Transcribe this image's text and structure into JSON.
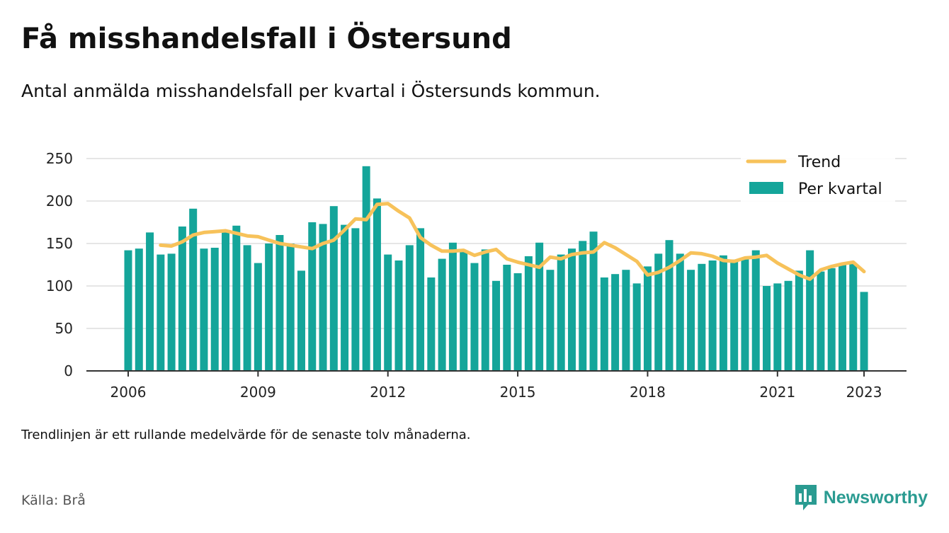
{
  "header": {
    "title": "Få misshandelsfall i Östersund",
    "subtitle": "Antal anmälda misshandelsfall per kvartal i Östersunds kommun."
  },
  "footer": {
    "note": "Trendlinjen är ett rullande medelvärde för de senaste tolv månaderna.",
    "source": "Källa: Brå",
    "brand": "Newsworthy"
  },
  "colors": {
    "bar": "#14a59a",
    "trend": "#f7c25a",
    "grid": "#dddddd",
    "brand": "#2a9b91"
  },
  "chart_data": {
    "type": "bar",
    "title": "",
    "xlabel": "",
    "ylabel": "",
    "ylim": [
      0,
      250
    ],
    "yticks": [
      0,
      50,
      100,
      150,
      200,
      250
    ],
    "xticks": [
      "2006",
      "2009",
      "2012",
      "2015",
      "2018",
      "2021",
      "2023"
    ],
    "grid": true,
    "legend_position": "top-right",
    "x": [
      "2006 Q1",
      "2006 Q2",
      "2006 Q3",
      "2006 Q4",
      "2007 Q1",
      "2007 Q2",
      "2007 Q3",
      "2007 Q4",
      "2008 Q1",
      "2008 Q2",
      "2008 Q3",
      "2008 Q4",
      "2009 Q1",
      "2009 Q2",
      "2009 Q3",
      "2009 Q4",
      "2010 Q1",
      "2010 Q2",
      "2010 Q3",
      "2010 Q4",
      "2011 Q1",
      "2011 Q2",
      "2011 Q3",
      "2011 Q4",
      "2012 Q1",
      "2012 Q2",
      "2012 Q3",
      "2012 Q4",
      "2013 Q1",
      "2013 Q2",
      "2013 Q3",
      "2013 Q4",
      "2014 Q1",
      "2014 Q2",
      "2014 Q3",
      "2014 Q4",
      "2015 Q1",
      "2015 Q2",
      "2015 Q3",
      "2015 Q4",
      "2016 Q1",
      "2016 Q2",
      "2016 Q3",
      "2016 Q4",
      "2017 Q1",
      "2017 Q2",
      "2017 Q3",
      "2017 Q4",
      "2018 Q1",
      "2018 Q2",
      "2018 Q3",
      "2018 Q4",
      "2019 Q1",
      "2019 Q2",
      "2019 Q3",
      "2019 Q4",
      "2020 Q1",
      "2020 Q2",
      "2020 Q3",
      "2020 Q4",
      "2021 Q1",
      "2021 Q2",
      "2021 Q3",
      "2021 Q4",
      "2022 Q1",
      "2022 Q2",
      "2022 Q3",
      "2022 Q4",
      "2023 Q1"
    ],
    "series": [
      {
        "name": "Per kvartal",
        "type": "bar",
        "values": [
          142,
          144,
          163,
          137,
          138,
          170,
          191,
          144,
          145,
          166,
          171,
          148,
          127,
          150,
          160,
          150,
          118,
          175,
          173,
          194,
          172,
          168,
          241,
          203,
          137,
          130,
          148,
          168,
          110,
          132,
          151,
          142,
          127,
          143,
          106,
          125,
          115,
          135,
          151,
          119,
          137,
          144,
          153,
          164,
          110,
          114,
          119,
          103,
          123,
          138,
          154,
          138,
          119,
          126,
          130,
          136,
          131,
          133,
          142,
          100,
          103,
          106,
          118,
          142,
          117,
          121,
          125,
          126,
          93
        ]
      },
      {
        "name": "Trend",
        "type": "line",
        "values": [
          null,
          null,
          null,
          148,
          147,
          152,
          160,
          163,
          164,
          165,
          162,
          159,
          158,
          154,
          150,
          148,
          146,
          144,
          150,
          154,
          166,
          179,
          178,
          196,
          197,
          188,
          180,
          157,
          148,
          141,
          141,
          142,
          136,
          140,
          143,
          132,
          128,
          125,
          122,
          134,
          132,
          137,
          139,
          140,
          151,
          145,
          137,
          129,
          113,
          116,
          122,
          130,
          139,
          138,
          135,
          130,
          129,
          133,
          134,
          136,
          127,
          120,
          113,
          108,
          119,
          123,
          126,
          128,
          117
        ]
      }
    ]
  }
}
